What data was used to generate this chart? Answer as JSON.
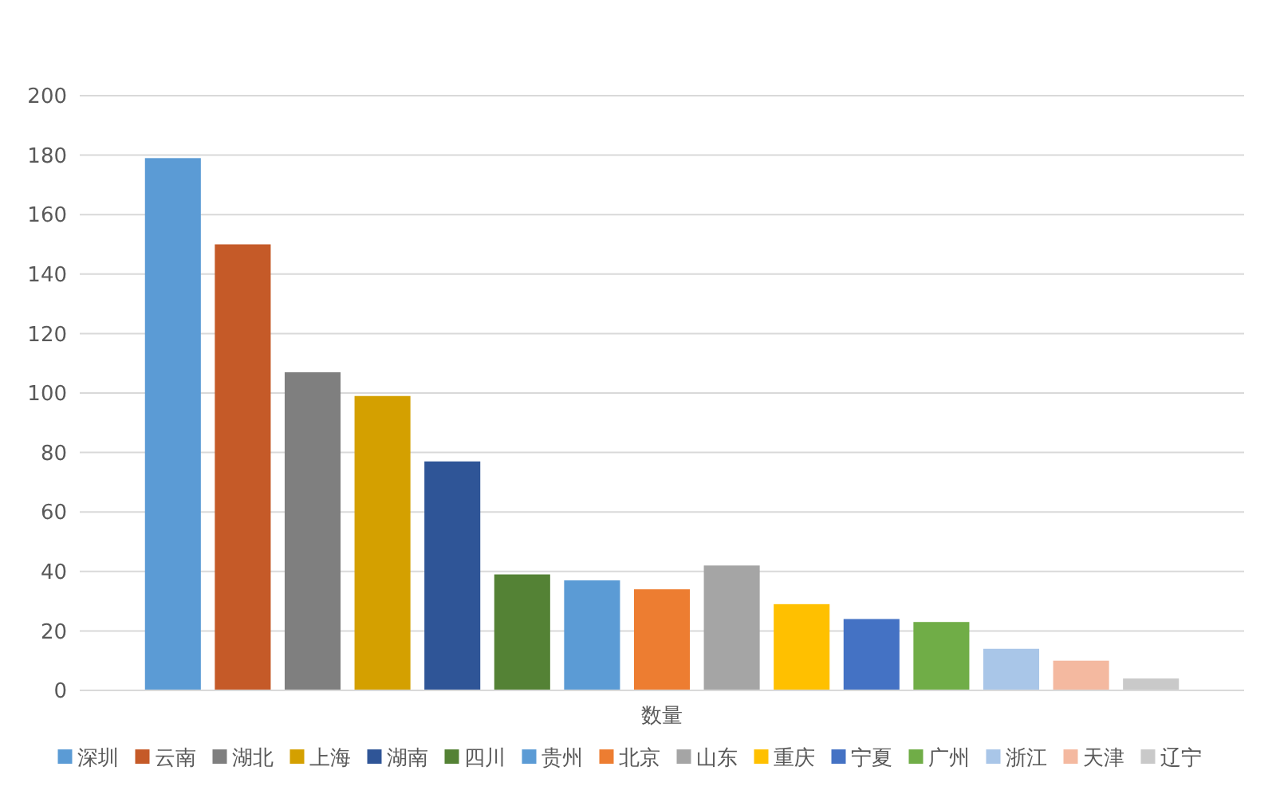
{
  "chart_data": {
    "type": "bar",
    "categories": [
      "数量"
    ],
    "series": [
      {
        "name": "深圳",
        "color": "#5b9bd5",
        "values": [
          179
        ]
      },
      {
        "name": "云南",
        "color": "#c55a28",
        "values": [
          150
        ]
      },
      {
        "name": "湖北",
        "color": "#7f7f7f",
        "values": [
          107
        ]
      },
      {
        "name": "上海",
        "color": "#d4a000",
        "values": [
          99
        ]
      },
      {
        "name": "湖南",
        "color": "#2f5597",
        "values": [
          77
        ]
      },
      {
        "name": "四川",
        "color": "#548235",
        "values": [
          39
        ]
      },
      {
        "name": "贵州",
        "color": "#5b9bd5",
        "values": [
          37
        ]
      },
      {
        "name": "北京",
        "color": "#ed7d31",
        "values": [
          34
        ]
      },
      {
        "name": "山东",
        "color": "#a5a5a5",
        "values": [
          42
        ]
      },
      {
        "name": "重庆",
        "color": "#ffc000",
        "values": [
          29
        ]
      },
      {
        "name": "宁夏",
        "color": "#4472c4",
        "values": [
          24
        ]
      },
      {
        "name": "广州",
        "color": "#70ad47",
        "values": [
          23
        ]
      },
      {
        "name": "浙江",
        "color": "#a9c6e8",
        "values": [
          14
        ]
      },
      {
        "name": "天津",
        "color": "#f4b9a0",
        "values": [
          10
        ]
      },
      {
        "name": "辽宁",
        "color": "#c9c9c9",
        "values": [
          4
        ]
      }
    ],
    "ylim": [
      0,
      200
    ],
    "yticks": [
      0,
      20,
      40,
      60,
      80,
      100,
      120,
      140,
      160,
      180,
      200
    ],
    "grid": "y",
    "legend": "bottom"
  }
}
